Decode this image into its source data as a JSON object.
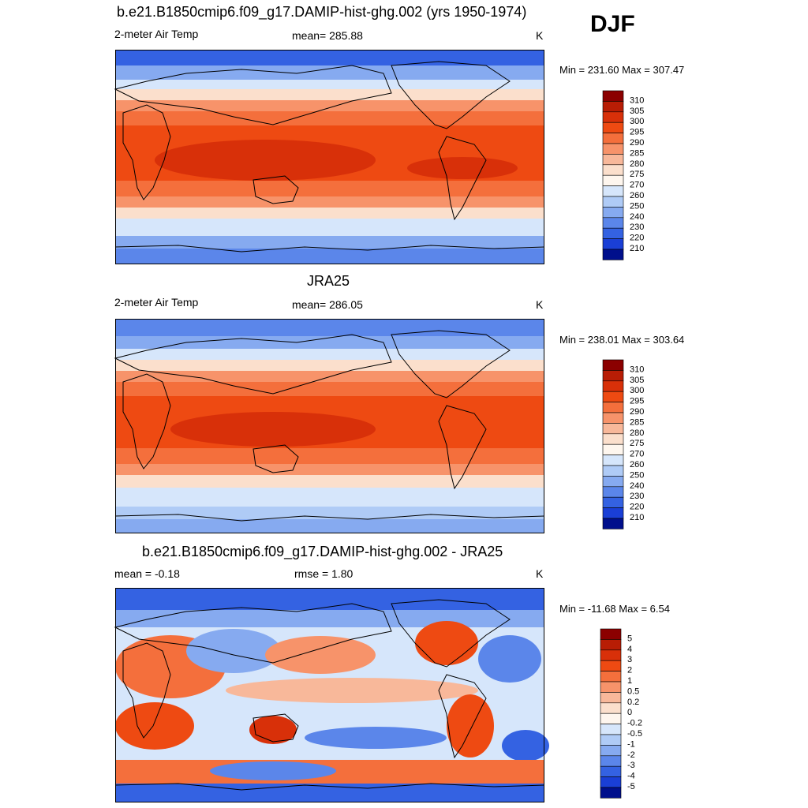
{
  "season": "DJF",
  "panels": [
    {
      "id": "model",
      "title": "b.e21.B1850cmip6.f09_g17.DAMIP-hist-ghg.002 (yrs 1950-1974)",
      "left_label": "2-meter Air Temp",
      "center_label": "mean= 285.88",
      "units": "K",
      "minmax": "Min = 231.60 Max = 307.47"
    },
    {
      "id": "obs",
      "title": "JRA25",
      "left_label": "2-meter Air Temp",
      "center_label": "mean= 286.05",
      "units": "K",
      "minmax": "Min = 238.01 Max = 303.64"
    },
    {
      "id": "diff",
      "title": "b.e21.B1850cmip6.f09_g17.DAMIP-hist-ghg.002 - JRA25",
      "left_label": "mean =  -0.18",
      "center_label": "rmse =   1.80",
      "units": "K",
      "minmax": "Min = -11.68 Max =   6.54"
    }
  ],
  "chart_data": [
    {
      "type": "heatmap",
      "title": "b.e21.B1850cmip6.f09_g17.DAMIP-hist-ghg.002 (yrs 1950-1974)",
      "variable": "2-meter Air Temp",
      "units": "K",
      "mean": 285.88,
      "min": 231.6,
      "max": 307.47,
      "colorbar_levels": [
        "310",
        "305",
        "300",
        "295",
        "290",
        "285",
        "280",
        "275",
        "270",
        "260",
        "250",
        "240",
        "230",
        "220",
        "210"
      ],
      "colorbar_colors": [
        "#8b0000",
        "#b81d05",
        "#d83009",
        "#ee4a12",
        "#f46f3c",
        "#f7936a",
        "#f8b89a",
        "#fbdfcc",
        "#fef6ee",
        "#d6e6fb",
        "#afcbf6",
        "#86aaf0",
        "#5b86ea",
        "#3462e2",
        "#1a3fd6",
        "#000f8c"
      ]
    },
    {
      "type": "heatmap",
      "title": "JRA25",
      "variable": "2-meter Air Temp",
      "units": "K",
      "mean": 286.05,
      "min": 238.01,
      "max": 303.64,
      "colorbar_levels": [
        "310",
        "305",
        "300",
        "295",
        "290",
        "285",
        "280",
        "275",
        "270",
        "260",
        "250",
        "240",
        "230",
        "220",
        "210"
      ],
      "colorbar_colors": [
        "#8b0000",
        "#b81d05",
        "#d83009",
        "#ee4a12",
        "#f46f3c",
        "#f7936a",
        "#f8b89a",
        "#fbdfcc",
        "#fef6ee",
        "#d6e6fb",
        "#afcbf6",
        "#86aaf0",
        "#5b86ea",
        "#3462e2",
        "#1a3fd6",
        "#000f8c"
      ]
    },
    {
      "type": "heatmap",
      "title": "b.e21.B1850cmip6.f09_g17.DAMIP-hist-ghg.002 - JRA25",
      "units": "K",
      "mean": -0.18,
      "rmse": 1.8,
      "min": -11.68,
      "max": 6.54,
      "colorbar_levels": [
        "5",
        "4",
        "3",
        "2",
        "1",
        "0.5",
        "0.2",
        "0",
        "-0.2",
        "-0.5",
        "-1",
        "-2",
        "-3",
        "-4",
        "-5"
      ],
      "colorbar_colors": [
        "#8b0000",
        "#b81d05",
        "#d83009",
        "#ee4a12",
        "#f46f3c",
        "#f7936a",
        "#f8b89a",
        "#fbdfcc",
        "#fef6ee",
        "#d6e6fb",
        "#afcbf6",
        "#86aaf0",
        "#5b86ea",
        "#3462e2",
        "#1a3fd6",
        "#000f8c"
      ]
    }
  ]
}
